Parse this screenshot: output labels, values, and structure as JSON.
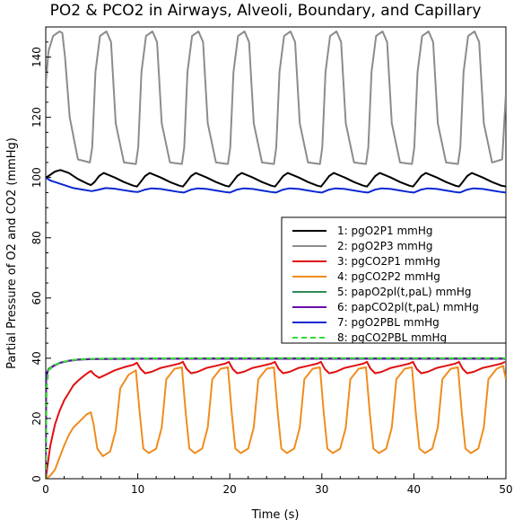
{
  "chart_data": {
    "type": "line",
    "title": "PO2 & PCO2 in Airways, Alveoli, Boundary, and Capillary",
    "xlabel": "Time (s)",
    "ylabel": "Partial Pressure of O2 and CO2 (mmHg)",
    "xlim": [
      0,
      50
    ],
    "ylim": [
      0,
      150
    ],
    "x_ticks": [
      "0",
      "10",
      "20",
      "30",
      "40",
      "50"
    ],
    "y_ticks": [
      "0",
      "20",
      "40",
      "60",
      "80",
      "100",
      "120",
      "140"
    ],
    "grid": false,
    "legend_position": "right",
    "breath_period_s": 5,
    "series": [
      {
        "label": "1: pgO2P1 mmHg",
        "color": "#000000",
        "dash": false,
        "x": [
          0,
          0.3,
          1,
          1.6,
          2.5,
          3.5,
          4.5,
          4.9,
          5.3,
          5.8,
          6.3,
          7.5,
          8.5,
          9.5,
          9.9,
          10.3,
          10.8,
          11.3,
          12.5,
          13.5,
          14.5,
          14.9,
          15.3,
          15.8,
          16.3,
          17.5,
          18.5,
          19.5,
          19.9,
          20.3,
          20.8,
          21.3,
          22.5,
          23.5,
          24.5,
          24.9,
          25.3,
          25.8,
          26.3,
          27.5,
          28.5,
          29.5,
          29.9,
          30.3,
          30.8,
          31.3,
          32.5,
          33.5,
          34.5,
          34.9,
          35.3,
          35.8,
          36.3,
          37.5,
          38.5,
          39.5,
          39.9,
          40.3,
          40.8,
          41.3,
          42.5,
          43.5,
          44.5,
          44.9,
          45.3,
          45.8,
          46.3,
          47.5,
          48.5,
          49.5,
          50
        ],
        "y": [
          100,
          100.5,
          102,
          102.5,
          101.5,
          99.5,
          98,
          97.5,
          98.5,
          100.5,
          101.5,
          100,
          98.5,
          97.3,
          97,
          98.5,
          100.5,
          101.5,
          100,
          98.5,
          97.3,
          97,
          98.5,
          100.5,
          101.5,
          100,
          98.5,
          97.3,
          97,
          98.5,
          100.5,
          101.5,
          100,
          98.5,
          97.3,
          97,
          98.5,
          100.5,
          101.5,
          100,
          98.5,
          97.3,
          97,
          98.5,
          100.5,
          101.5,
          100,
          98.5,
          97.3,
          97,
          98.5,
          100.5,
          101.5,
          100,
          98.5,
          97.3,
          97,
          98.5,
          100.5,
          101.5,
          100,
          98.5,
          97.3,
          97,
          98.5,
          100.5,
          101.5,
          100,
          98.5,
          97.3,
          97
        ]
      },
      {
        "label": "2: pgO2P3 mmHg",
        "color": "#8c8c8c",
        "dash": false,
        "x": [
          0,
          0.3,
          0.8,
          1.5,
          1.8,
          2.1,
          2.6,
          3.5,
          4.8,
          5.05,
          5.4,
          5.9,
          6.6,
          7.1,
          7.6,
          8.5,
          9.8,
          10.05,
          10.4,
          10.9,
          11.6,
          12.1,
          12.6,
          13.5,
          14.8,
          15.05,
          15.4,
          15.9,
          16.6,
          17.1,
          17.6,
          18.5,
          19.8,
          20.05,
          20.4,
          20.9,
          21.6,
          22.1,
          22.6,
          23.5,
          24.8,
          25.05,
          25.4,
          25.9,
          26.6,
          27.1,
          27.6,
          28.5,
          29.8,
          30.05,
          30.4,
          30.9,
          31.6,
          32.1,
          32.6,
          33.5,
          34.8,
          35.05,
          35.4,
          35.9,
          36.6,
          37.1,
          37.6,
          38.5,
          39.8,
          40.05,
          40.4,
          40.9,
          41.6,
          42.1,
          42.6,
          43.5,
          44.8,
          45.05,
          45.4,
          45.9,
          46.6,
          47.1,
          47.6,
          48.5,
          49.6,
          50
        ],
        "y": [
          131,
          142,
          147,
          148.5,
          148,
          140,
          120,
          106,
          105,
          110,
          135,
          147,
          148.5,
          145,
          118,
          105,
          104.5,
          110,
          135,
          147,
          148.5,
          145,
          118,
          105,
          104.5,
          110,
          135,
          147,
          148.5,
          145,
          118,
          105,
          104.5,
          110,
          135,
          147,
          148.5,
          145,
          118,
          105,
          104.5,
          110,
          135,
          147,
          148.5,
          145,
          118,
          105,
          104.5,
          110,
          135,
          147,
          148.5,
          145,
          118,
          105,
          104.5,
          110,
          135,
          147,
          148.5,
          145,
          118,
          105,
          104.5,
          110,
          135,
          147,
          148.5,
          145,
          118,
          105,
          104.5,
          110,
          135,
          147,
          148.5,
          145,
          118,
          105,
          106,
          128
        ]
      },
      {
        "label": "3: pgCO2P1 mmHg",
        "color": "#e01010",
        "dash": false,
        "x": [
          0,
          0.5,
          1,
          1.5,
          2,
          2.5,
          3,
          3.5,
          4,
          4.5,
          4.9,
          5.3,
          5.8,
          6.5,
          7.5,
          8.5,
          9.5,
          9.9,
          10.3,
          10.8,
          11.5,
          12.5,
          13.5,
          14.5,
          14.9,
          15.3,
          15.8,
          16.5,
          17.5,
          18.5,
          19.5,
          19.9,
          20.3,
          20.8,
          21.5,
          22.5,
          23.5,
          24.5,
          24.9,
          25.3,
          25.8,
          26.5,
          27.5,
          28.5,
          29.5,
          29.9,
          30.3,
          30.8,
          31.5,
          32.5,
          33.5,
          34.5,
          34.9,
          35.3,
          35.8,
          36.5,
          37.5,
          38.5,
          39.5,
          39.9,
          40.3,
          40.8,
          41.5,
          42.5,
          43.5,
          44.5,
          44.9,
          45.3,
          45.8,
          46.5,
          47.5,
          48.5,
          49.5,
          49.9
        ],
        "y": [
          0,
          11,
          18,
          22.5,
          26,
          28.5,
          31,
          32.5,
          33.8,
          35,
          35.8,
          34.5,
          33.5,
          34.5,
          36,
          37,
          37.8,
          38.5,
          36.5,
          35,
          35.5,
          36.8,
          37.5,
          38.2,
          38.8,
          36.5,
          35,
          35.5,
          36.8,
          37.5,
          38.2,
          38.8,
          36.5,
          35,
          35.5,
          36.8,
          37.5,
          38.2,
          38.8,
          36.5,
          35,
          35.5,
          36.8,
          37.5,
          38.2,
          38.8,
          36.5,
          35,
          35.5,
          36.8,
          37.5,
          38.2,
          38.8,
          36.5,
          35,
          35.5,
          36.8,
          37.5,
          38.2,
          38.8,
          36.5,
          35,
          35.5,
          36.8,
          37.5,
          38.2,
          38.8,
          36.5,
          35,
          35.5,
          36.8,
          37.5,
          38.2,
          38.8
        ]
      },
      {
        "label": "4: pgCO2P2 mmHg",
        "color": "#f08c1e",
        "dash": false,
        "x": [
          0,
          0.5,
          1,
          1.5,
          2,
          2.5,
          3,
          3.5,
          4,
          4.5,
          4.9,
          5.2,
          5.6,
          6.2,
          7,
          7.6,
          8.1,
          9,
          9.8,
          10.2,
          10.6,
          11.2,
          12,
          12.6,
          13.1,
          14,
          14.8,
          15.2,
          15.6,
          16.2,
          17,
          17.6,
          18.1,
          19,
          19.8,
          20.2,
          20.6,
          21.2,
          22,
          22.6,
          23.1,
          24,
          24.8,
          25.2,
          25.6,
          26.2,
          27,
          27.6,
          28.1,
          29,
          29.8,
          30.2,
          30.6,
          31.2,
          32,
          32.6,
          33.1,
          34,
          34.8,
          35.2,
          35.6,
          36.2,
          37,
          37.6,
          38.1,
          39,
          39.8,
          40.2,
          40.6,
          41.2,
          42,
          42.6,
          43.1,
          44,
          44.8,
          45.2,
          45.6,
          46.2,
          47,
          47.6,
          48.1,
          49,
          49.7,
          50
        ],
        "y": [
          0,
          1,
          3,
          7,
          11,
          14.5,
          17,
          18.5,
          20,
          21.5,
          22,
          18,
          10,
          7.5,
          9,
          16,
          30,
          34.5,
          36,
          22,
          10,
          8.5,
          10,
          17,
          33,
          36.5,
          37,
          22,
          10,
          8.5,
          10,
          17,
          33,
          36.5,
          37,
          22,
          10,
          8.5,
          10,
          17,
          33,
          36.5,
          37,
          22,
          10,
          8.5,
          10,
          17,
          33,
          36.5,
          37,
          22,
          10,
          8.5,
          10,
          17,
          33,
          36.5,
          37,
          22,
          10,
          8.5,
          10,
          17,
          33,
          36.5,
          37,
          22,
          10,
          8.5,
          10,
          17,
          33,
          36.5,
          37,
          22,
          10,
          8.5,
          10,
          17,
          33,
          36.5,
          37.5,
          33
        ]
      },
      {
        "label": "5: papO2pl(t,paL) mmHg",
        "color": "#2e8b57",
        "dash": false,
        "x": [
          0,
          0.05,
          0.3,
          0.8,
          1.5,
          2.5,
          3.5,
          5,
          10,
          20,
          30,
          40,
          50
        ],
        "y": [
          0,
          34,
          36.5,
          37.5,
          38.5,
          39.2,
          39.6,
          39.8,
          39.9,
          40,
          40,
          40,
          40
        ]
      },
      {
        "label": "6: papCO2pl(t,paL) mmHg",
        "color": "#6a0dad",
        "dash": false,
        "x": [
          0,
          0.05,
          0.3,
          0.8,
          1.5,
          2.5,
          3.5,
          5,
          10,
          20,
          30,
          40,
          50
        ],
        "y": [
          0,
          35,
          36,
          37.3,
          38.4,
          39.1,
          39.5,
          39.7,
          39.8,
          39.8,
          39.8,
          39.8,
          39.8
        ]
      },
      {
        "label": "7: pgO2PBL mmHg",
        "color": "#0a28d2",
        "dash": false,
        "x": [
          0,
          0.5,
          1,
          2,
          3,
          4,
          5,
          5.8,
          6.5,
          7.5,
          8.5,
          9.5,
          10,
          10.8,
          11.5,
          12.5,
          13.5,
          14.5,
          15,
          15.8,
          16.5,
          17.5,
          18.5,
          19.5,
          20,
          20.8,
          21.5,
          22.5,
          23.5,
          24.5,
          25,
          25.8,
          26.5,
          27.5,
          28.5,
          29.5,
          30,
          30.8,
          31.5,
          32.5,
          33.5,
          34.5,
          35,
          35.8,
          36.5,
          37.5,
          38.5,
          39.5,
          40,
          40.8,
          41.5,
          42.5,
          43.5,
          44.5,
          45,
          45.8,
          46.5,
          47.5,
          48.5,
          49.5,
          50
        ],
        "y": [
          100,
          99,
          98.5,
          97.5,
          96.5,
          96,
          95.5,
          96,
          96.5,
          96.3,
          95.8,
          95.3,
          95.2,
          96,
          96.4,
          96.2,
          95.7,
          95.2,
          95,
          96,
          96.4,
          96.2,
          95.7,
          95.2,
          95,
          96,
          96.4,
          96.2,
          95.7,
          95.2,
          95,
          96,
          96.4,
          96.2,
          95.7,
          95.2,
          95,
          96,
          96.4,
          96.2,
          95.7,
          95.2,
          95,
          96,
          96.4,
          96.2,
          95.7,
          95.2,
          95,
          96,
          96.4,
          96.2,
          95.7,
          95.2,
          95,
          96,
          96.4,
          96.2,
          95.7,
          95.2,
          95
        ]
      },
      {
        "label": "8: pgCO2PBL mmHg",
        "color": "#33dd33",
        "dash": true,
        "x": [
          0,
          0.1,
          0.3,
          0.8,
          1.5,
          2.5,
          3.5,
          5,
          10,
          20,
          30,
          40,
          50
        ],
        "y": [
          0,
          30,
          36,
          37.5,
          38.5,
          39.2,
          39.6,
          39.8,
          39.9,
          40,
          40,
          40,
          40
        ]
      }
    ]
  }
}
